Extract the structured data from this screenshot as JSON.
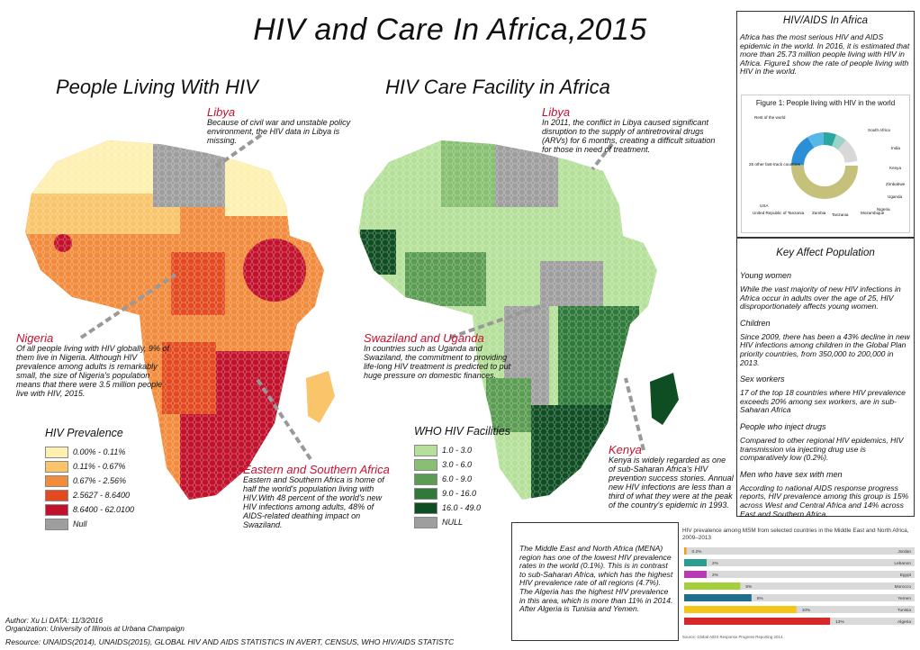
{
  "title": "HIV and Care In Africa,2015",
  "left_map": {
    "title": "People Living With HIV",
    "libya": {
      "heading": "Libya",
      "text": "Because of civil war and unstable policy environment, the HIV data in Libya is missing."
    },
    "nigeria": {
      "heading": "Nigeria",
      "text": "Of all people living with HIV globally, 9% of them live in Nigeria. Although HIV prevalence among adults is remarkably small, the size of Nigeria's population means that there were 3.5 million people live with HIV, 2015."
    },
    "eastern": {
      "heading": "Eastern and Southern Africa",
      "text": "Eastern and Southern Africa is home of half the world's population living with HIV.With 48 percent of the world's new HIV infections among adults, 48% of AIDS-related deathing impact on Swaziland."
    },
    "legend": {
      "title": "HIV Prevalence",
      "items": [
        {
          "label": "0.00% - 0.11%",
          "color": "#fdf0b0"
        },
        {
          "label": "0.11% - 0.67%",
          "color": "#f9c46a"
        },
        {
          "label": "0.67% - 2.56%",
          "color": "#f28b3c"
        },
        {
          "label": "2.5627 - 8.6400",
          "color": "#e34a1f"
        },
        {
          "label": "8.6400 - 62.0100",
          "color": "#c1112d"
        },
        {
          "label": "Null",
          "color": "#9e9e9e"
        }
      ]
    }
  },
  "right_map": {
    "title": "HIV Care Facility in Africa",
    "libya": {
      "heading": "Libya",
      "text": "In 2011, the conflict in Libya caused significant disruption to the supply of antiretroviral drugs (ARVs) for 6 months, creating a difficult situation for those in need of treatment."
    },
    "swaziland": {
      "heading": "Swaziland and Uganda",
      "text": "In countries such as Uganda and Swaziland, the commitment to providing life-long HIV treatment is predicted to put huge pressure on domestic finances."
    },
    "kenya": {
      "heading": "Kenya",
      "text": "Kenya is widely regarded as one of sub-Saharan Africa's HIV prevention success stories. Annual new HIV infections are less than a third of what they were at the peak of the country's epidemic in 1993."
    },
    "legend": {
      "title": "WHO HIV Facilities",
      "items": [
        {
          "label": "1.0 - 3.0",
          "color": "#b5e09a"
        },
        {
          "label": "3.0 - 6.0",
          "color": "#86c070"
        },
        {
          "label": "6.0 - 9.0",
          "color": "#5a9c52"
        },
        {
          "label": "9.0 - 16.0",
          "color": "#2f7a3a"
        },
        {
          "label": "16.0 - 49.0",
          "color": "#0f4d22"
        },
        {
          "label": "NULL",
          "color": "#9e9e9e"
        }
      ]
    }
  },
  "aids_panel": {
    "title": "HIV/AIDS In Africa",
    "text": "Africa has the most serious HIV and AIDS epidemic in the world. In 2016, it is estimated that more than 25.73 million people living with HIV in Africa. Figure1 show the rate of people living with HIV in the world."
  },
  "figure1": {
    "title": "Figure 1: People living with HIV in the world",
    "labels": [
      "Rest of the world",
      "South Africa",
      "India",
      "Kenya",
      "Zimbabwe",
      "Uganda",
      "Nigeria",
      "Mozambique",
      "Tanzania",
      "Zambia",
      "United Republic of Tanzania",
      "USA",
      "25 other fast-track countries"
    ]
  },
  "key_panel": {
    "title": "Key Affect Population",
    "sections": [
      {
        "head": "Young women",
        "text": "While the vast majority of new HIV infections in Africa occur in adults over the age of 25, HIV disproportionately affects young women."
      },
      {
        "head": "Children",
        "text": "Since 2009, there has been a 43% decline in new HIV infections among children in the Global Plan priority countries, from 350,000 to 200,000 in 2013."
      },
      {
        "head": "Sex workers",
        "text": "17 of the top 18 countries where HIV prevalence exceeds 20% among sex workers, are in sub-Saharan Africa"
      },
      {
        "head": "People who inject drugs",
        "text": "Compared to other regional HIV epidemics, HIV transmission via injecting drug use is comparatively low (0.2%)."
      },
      {
        "head": "Men who have sex with men",
        "text": "According to national AIDS response progress reports, HIV prevalence among this group is 15% across West and Central Africa and 14% across East and Southern Africa."
      }
    ]
  },
  "mena_panel": {
    "text1": "The Middle East and North Africa (MENA) region has one of the lowest HIV prevalence rates in the world (0.1%). This is in contrast to sub-Saharan Africa, which has the highest HIV prevalence rate of all regions (4.7%).",
    "text2": "The Algeria has the highest HIV prevalence in this area, which is more than 11% in 2014. After Algeria is Tunisia and Yemen."
  },
  "chart_data": {
    "type": "bar",
    "orientation": "horizontal",
    "title": "HIV prevalence among MSM from selected countries in the Middle East and North Africa, 2009–2013",
    "source": "Source: Global AIDS Response Progress Reporting 2014.",
    "categories": [
      "Jordan",
      "Lebanon",
      "Egypt",
      "Morocco",
      "Yemen",
      "Tunisia",
      "Algeria"
    ],
    "values": [
      0.2,
      2,
      2,
      5,
      6,
      10,
      13
    ],
    "value_labels": [
      "0.2%",
      "2%",
      "2%",
      "5%",
      "6%",
      "10%",
      "13%"
    ],
    "colors": [
      "#f39c12",
      "#2a9d8f",
      "#b83bb5",
      "#a3cf3a",
      "#1f6e8c",
      "#f5c518",
      "#d62828"
    ],
    "xlim": [
      0,
      17
    ]
  },
  "credits": {
    "author": "Author: Xu Li   DATA: 11/3/2016",
    "organization": "Organization: University of Illinois at Urbana Champaign",
    "resource": "Resource: UNAIDS(2014), UNAIDS(2015), GLOBAL HIV AND AIDS STATISTICS IN AVERT, CENSUS, WHO HIV/AIDS STATISTC"
  }
}
